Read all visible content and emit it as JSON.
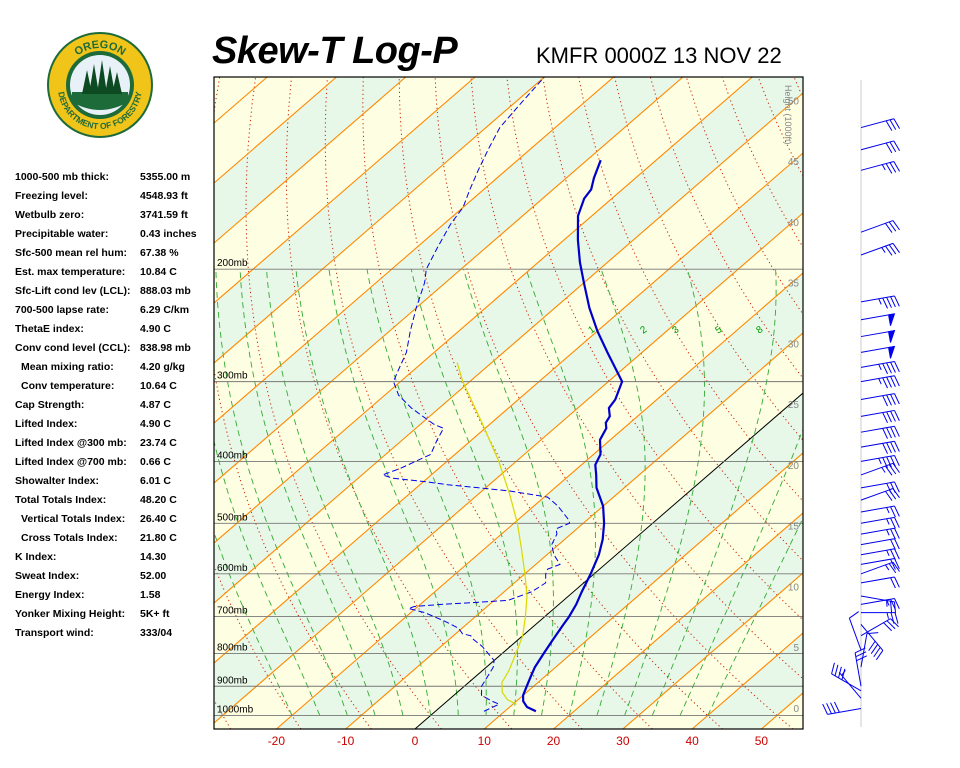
{
  "header": {
    "title": "Skew-T Log-P",
    "station": "KMFR 0000Z 13 NOV 22"
  },
  "logo": {
    "text_top": "OREGON",
    "text_bottom": "DEPARTMENT OF FORESTRY",
    "colors": {
      "ring": "#f0c419",
      "field": "#1e6b3a",
      "tree": "#0d4a22"
    }
  },
  "stats": [
    {
      "label": "1000-500 mb thick:",
      "value": "5355.00 m",
      "indent": false
    },
    {
      "label": "Freezing level:",
      "value": "4548.93 ft",
      "indent": false
    },
    {
      "label": "Wetbulb zero:",
      "value": "3741.59 ft",
      "indent": false
    },
    {
      "label": "Precipitable water:",
      "value": "0.43 inches",
      "indent": false
    },
    {
      "label": "Sfc-500 mean rel hum:",
      "value": "67.38 %",
      "indent": false
    },
    {
      "label": "Est. max temperature:",
      "value": "10.84 C",
      "indent": false
    },
    {
      "label": "Sfc-Lift cond lev (LCL):",
      "value": "888.03 mb",
      "indent": false
    },
    {
      "label": "700-500 lapse rate:",
      "value": "6.29 C/km",
      "indent": false
    },
    {
      "label": "ThetaE index:",
      "value": "4.90 C",
      "indent": false
    },
    {
      "label": "Conv cond level (CCL):",
      "value": "838.98 mb",
      "indent": false
    },
    {
      "label": "Mean mixing ratio:",
      "value": "4.20 g/kg",
      "indent": true
    },
    {
      "label": "Conv temperature:",
      "value": "10.64 C",
      "indent": true
    },
    {
      "label": "Cap Strength:",
      "value": "4.87 C",
      "indent": false
    },
    {
      "label": "Lifted Index:",
      "value": "4.90 C",
      "indent": false
    },
    {
      "label": "Lifted Index @300 mb:",
      "value": "23.74 C",
      "indent": false
    },
    {
      "label": "Lifted Index @700 mb:",
      "value": "0.66 C",
      "indent": false
    },
    {
      "label": "Showalter Index:",
      "value": "6.01 C",
      "indent": false
    },
    {
      "label": "Total Totals Index:",
      "value": "48.20 C",
      "indent": false
    },
    {
      "label": "Vertical Totals Index:",
      "value": "26.40 C",
      "indent": true
    },
    {
      "label": "Cross Totals Index:",
      "value": "21.80 C",
      "indent": true
    },
    {
      "label": "K Index:",
      "value": "14.30",
      "indent": false
    },
    {
      "label": "Sweat Index:",
      "value": "52.00",
      "indent": false
    },
    {
      "label": "Energy Index:",
      "value": "1.58",
      "indent": false
    },
    {
      "label": "Yonker Mixing Height:",
      "value": "5K+ ft",
      "indent": false
    },
    {
      "label": "Transport wind:",
      "value": "333/04",
      "indent": false
    }
  ],
  "chart_data": {
    "type": "line",
    "title": "Skew-T Log-P",
    "xlabel": "",
    "ylabel": "",
    "x_range": [
      -29,
      56
    ],
    "p_range": [
      1050,
      100
    ],
    "x_ticks": [
      -20,
      -10,
      0,
      10,
      20,
      30,
      40,
      50
    ],
    "pressure_levels": [
      {
        "p": 200,
        "label": "200mb"
      },
      {
        "p": 300,
        "label": "300mb"
      },
      {
        "p": 400,
        "label": "400mb"
      },
      {
        "p": 500,
        "label": "500mb"
      },
      {
        "p": 600,
        "label": "600mb"
      },
      {
        "p": 700,
        "label": "700mb"
      },
      {
        "p": 800,
        "label": "800mb"
      },
      {
        "p": 900,
        "label": "900mb"
      },
      {
        "p": 1000,
        "label": "1000mb"
      }
    ],
    "height_axis": {
      "title": "Height (1000ft)",
      "ticks": [
        {
          "h": 0,
          "label": "0"
        },
        {
          "h": 5,
          "label": "5"
        },
        {
          "h": 10,
          "label": "10"
        },
        {
          "h": 15,
          "label": "15"
        },
        {
          "h": 20,
          "label": "20"
        },
        {
          "h": 25,
          "label": "25"
        },
        {
          "h": 30,
          "label": "30"
        },
        {
          "h": 35,
          "label": "35"
        },
        {
          "h": 40,
          "label": "40"
        },
        {
          "h": 45,
          "label": "45"
        },
        {
          "h": 50,
          "label": "50"
        }
      ]
    },
    "mixing_ratio_labels": [
      {
        "w": 1,
        "label": "1"
      },
      {
        "w": 2,
        "label": "2"
      },
      {
        "w": 3,
        "label": "3"
      },
      {
        "w": 5,
        "label": "5"
      },
      {
        "w": 8,
        "label": "8"
      }
    ],
    "series": [
      {
        "role": "temperature",
        "points": [
          {
            "p": 985,
            "t": 14.5
          },
          {
            "p": 970,
            "t": 12.5
          },
          {
            "p": 950,
            "t": 11.0
          },
          {
            "p": 930,
            "t": 10.0
          },
          {
            "p": 900,
            "t": 9.0
          },
          {
            "p": 870,
            "t": 8.0
          },
          {
            "p": 840,
            "t": 7.0
          },
          {
            "p": 800,
            "t": 6.0
          },
          {
            "p": 760,
            "t": 5.0
          },
          {
            "p": 720,
            "t": 4.0
          },
          {
            "p": 700,
            "t": 3.5
          },
          {
            "p": 670,
            "t": 2.5
          },
          {
            "p": 640,
            "t": 1.2
          },
          {
            "p": 600,
            "t": -0.5
          },
          {
            "p": 560,
            "t": -2.5
          },
          {
            "p": 530,
            "t": -4.5
          },
          {
            "p": 500,
            "t": -7.0
          },
          {
            "p": 470,
            "t": -10.0
          },
          {
            "p": 440,
            "t": -14.0
          },
          {
            "p": 420,
            "t": -16.2
          },
          {
            "p": 405,
            "t": -18.0
          },
          {
            "p": 390,
            "t": -19.0
          },
          {
            "p": 370,
            "t": -21.5
          },
          {
            "p": 355,
            "t": -22.5
          },
          {
            "p": 348,
            "t": -23.5
          },
          {
            "p": 340,
            "t": -24.0
          },
          {
            "p": 330,
            "t": -25.5
          },
          {
            "p": 320,
            "t": -26.0
          },
          {
            "p": 300,
            "t": -28.0
          },
          {
            "p": 270,
            "t": -35.0
          },
          {
            "p": 250,
            "t": -40.0
          },
          {
            "p": 230,
            "t": -45.0
          },
          {
            "p": 210,
            "t": -50.0
          },
          {
            "p": 195,
            "t": -54.0
          },
          {
            "p": 180,
            "t": -58.0
          },
          {
            "p": 165,
            "t": -62.0
          },
          {
            "p": 155,
            "t": -64.0
          },
          {
            "p": 150,
            "t": -64.5
          },
          {
            "p": 144,
            "t": -66.0
          },
          {
            "p": 135,
            "t": -68.0
          }
        ]
      },
      {
        "role": "dewpoint",
        "points": [
          {
            "p": 985,
            "t": 7.0
          },
          {
            "p": 960,
            "t": 8.0
          },
          {
            "p": 950,
            "t": 6.5
          },
          {
            "p": 930,
            "t": 4.0
          },
          {
            "p": 900,
            "t": 2.5
          },
          {
            "p": 880,
            "t": 2.0
          },
          {
            "p": 860,
            "t": 1.5
          },
          {
            "p": 840,
            "t": 1.0
          },
          {
            "p": 820,
            "t": 0.0
          },
          {
            "p": 800,
            "t": -2.0
          },
          {
            "p": 780,
            "t": -4.0
          },
          {
            "p": 760,
            "t": -6.5
          },
          {
            "p": 750,
            "t": -7.5
          },
          {
            "p": 745,
            "t": -9.0
          },
          {
            "p": 730,
            "t": -10.5
          },
          {
            "p": 710,
            "t": -14.0
          },
          {
            "p": 700,
            "t": -16.0
          },
          {
            "p": 690,
            "t": -18.0
          },
          {
            "p": 680,
            "t": -21.0
          },
          {
            "p": 675,
            "t": -20.5
          },
          {
            "p": 670,
            "t": -17.0
          },
          {
            "p": 665,
            "t": -12.0
          },
          {
            "p": 660,
            "t": -8.0
          },
          {
            "p": 640,
            "t": -6.0
          },
          {
            "p": 620,
            "t": -5.5
          },
          {
            "p": 600,
            "t": -7.0
          },
          {
            "p": 590,
            "t": -7.5
          },
          {
            "p": 580,
            "t": -6.5
          },
          {
            "p": 560,
            "t": -9.0
          },
          {
            "p": 540,
            "t": -11.0
          },
          {
            "p": 520,
            "t": -12.0
          },
          {
            "p": 510,
            "t": -13.0
          },
          {
            "p": 500,
            "t": -12.0
          },
          {
            "p": 495,
            "t": -12.5
          },
          {
            "p": 470,
            "t": -16.5
          },
          {
            "p": 455,
            "t": -19.5
          },
          {
            "p": 445,
            "t": -26.0
          },
          {
            "p": 440,
            "t": -31.0
          },
          {
            "p": 435,
            "t": -36.0
          },
          {
            "p": 430,
            "t": -40.0
          },
          {
            "p": 425,
            "t": -45.0
          },
          {
            "p": 420,
            "t": -47.0
          },
          {
            "p": 410,
            "t": -45.5
          },
          {
            "p": 390,
            "t": -43.5
          },
          {
            "p": 370,
            "t": -45.0
          },
          {
            "p": 355,
            "t": -46.0
          },
          {
            "p": 350,
            "t": -48.0
          },
          {
            "p": 345,
            "t": -49.5
          },
          {
            "p": 330,
            "t": -54.0
          },
          {
            "p": 315,
            "t": -58.0
          },
          {
            "p": 300,
            "t": -61.0
          },
          {
            "p": 290,
            "t": -62.0
          },
          {
            "p": 270,
            "t": -64.0
          },
          {
            "p": 250,
            "t": -67.0
          },
          {
            "p": 230,
            "t": -70.0
          },
          {
            "p": 210,
            "t": -73.0
          },
          {
            "p": 200,
            "t": -75.0
          },
          {
            "p": 185,
            "t": -77.0
          },
          {
            "p": 170,
            "t": -79.0
          },
          {
            "p": 160,
            "t": -80.0
          },
          {
            "p": 150,
            "t": -82.0
          },
          {
            "p": 140,
            "t": -84.0
          },
          {
            "p": 130,
            "t": -86.0
          },
          {
            "p": 120,
            "t": -88.0
          },
          {
            "p": 110,
            "t": -89.0
          },
          {
            "p": 100,
            "t": -90.0
          }
        ]
      },
      {
        "role": "parcel",
        "points": [
          {
            "p": 960,
            "t": 10.5
          },
          {
            "p": 945,
            "t": 8.5
          },
          {
            "p": 920,
            "t": 6.5
          },
          {
            "p": 888,
            "t": 4.8
          },
          {
            "p": 850,
            "t": 3.8
          },
          {
            "p": 800,
            "t": 2.0
          },
          {
            "p": 750,
            "t": 0.0
          },
          {
            "p": 700,
            "t": -2.8
          },
          {
            "p": 650,
            "t": -6.0
          },
          {
            "p": 600,
            "t": -10.0
          },
          {
            "p": 550,
            "t": -14.5
          },
          {
            "p": 500,
            "t": -19.5
          },
          {
            "p": 450,
            "t": -25.5
          },
          {
            "p": 400,
            "t": -32.5
          },
          {
            "p": 350,
            "t": -41.0
          },
          {
            "p": 300,
            "t": -51.0
          },
          {
            "p": 280,
            "t": -55.0
          }
        ]
      }
    ],
    "wind_barbs": [
      {
        "p": 975,
        "dir": 260,
        "spd": 40
      },
      {
        "p": 940,
        "dir": 320,
        "spd": 5
      },
      {
        "p": 915,
        "dir": 300,
        "spd": 40
      },
      {
        "p": 900,
        "dir": 350,
        "spd": 30
      },
      {
        "p": 840,
        "dir": 10,
        "spd": 10
      },
      {
        "p": 790,
        "dir": 340,
        "spd": 12
      },
      {
        "p": 750,
        "dir": 60,
        "spd": 30
      },
      {
        "p": 720,
        "dir": 140,
        "spd": 40
      },
      {
        "p": 690,
        "dir": 90,
        "spd": 25
      },
      {
        "p": 670,
        "dir": 80,
        "spd": 25
      },
      {
        "p": 650,
        "dir": 100,
        "spd": 25
      },
      {
        "p": 620,
        "dir": 80,
        "spd": 20
      },
      {
        "p": 600,
        "dir": 70,
        "spd": 25
      },
      {
        "p": 580,
        "dir": 80,
        "spd": 20
      },
      {
        "p": 560,
        "dir": 80,
        "spd": 25
      },
      {
        "p": 540,
        "dir": 80,
        "spd": 20
      },
      {
        "p": 520,
        "dir": 80,
        "spd": 25
      },
      {
        "p": 500,
        "dir": 80,
        "spd": 25
      },
      {
        "p": 480,
        "dir": 80,
        "spd": 25
      },
      {
        "p": 460,
        "dir": 70,
        "spd": 30
      },
      {
        "p": 440,
        "dir": 80,
        "spd": 30
      },
      {
        "p": 420,
        "dir": 70,
        "spd": 35
      },
      {
        "p": 400,
        "dir": 80,
        "spd": 45
      },
      {
        "p": 380,
        "dir": 80,
        "spd": 40
      },
      {
        "p": 360,
        "dir": 80,
        "spd": 40
      },
      {
        "p": 340,
        "dir": 80,
        "spd": 40
      },
      {
        "p": 320,
        "dir": 80,
        "spd": 40
      },
      {
        "p": 300,
        "dir": 80,
        "spd": 45
      },
      {
        "p": 285,
        "dir": 80,
        "spd": 45
      },
      {
        "p": 270,
        "dir": 80,
        "spd": 50
      },
      {
        "p": 255,
        "dir": 80,
        "spd": 50
      },
      {
        "p": 240,
        "dir": 80,
        "spd": 50
      },
      {
        "p": 225,
        "dir": 80,
        "spd": 45
      },
      {
        "p": 190,
        "dir": 70,
        "spd": 35
      },
      {
        "p": 175,
        "dir": 70,
        "spd": 30
      },
      {
        "p": 140,
        "dir": 75,
        "spd": 35
      },
      {
        "p": 130,
        "dir": 75,
        "spd": 30
      },
      {
        "p": 120,
        "dir": 75,
        "spd": 30
      }
    ],
    "colors": {
      "temperature": "#0000cc",
      "dewpoint": "#0000ee",
      "parcel": "#d8d800",
      "isotherm": "#ff8800",
      "dry_adiabat": "#cc2200",
      "moist_adiabat": "#33aa33",
      "mixing_ratio": "#00a000",
      "isobar": "#777777",
      "freezing_isotherm": "#000000",
      "barb": "#0000ee",
      "x_tick_label": "#cc0000",
      "height_label": "#888888",
      "band_a": "#e8f8e8",
      "band_b": "#fefee2"
    }
  }
}
